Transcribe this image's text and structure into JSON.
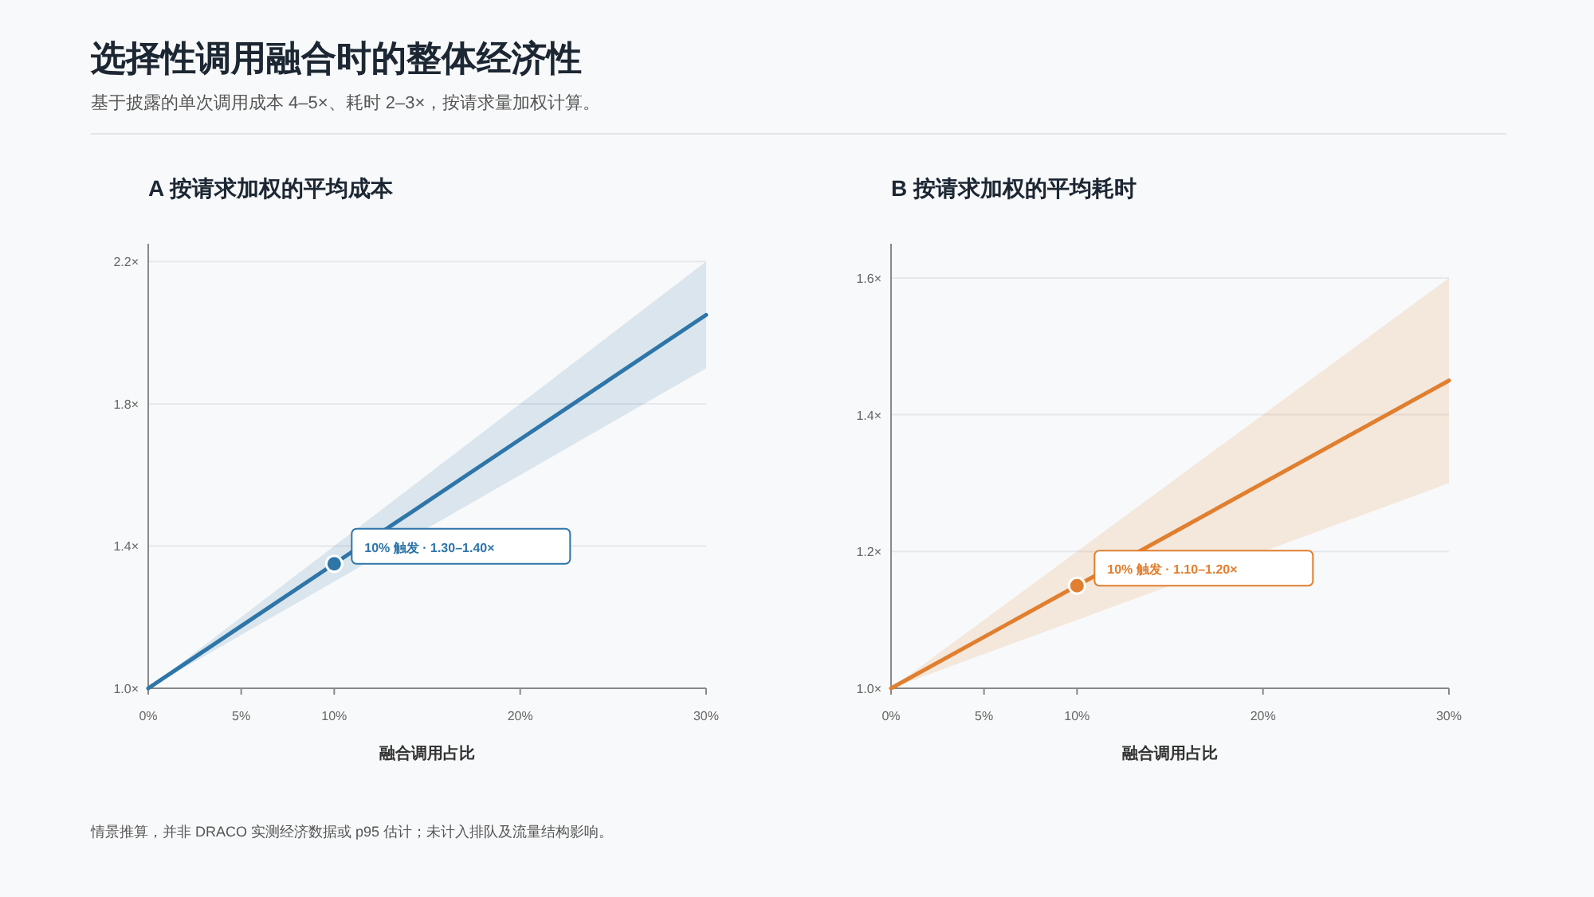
{
  "chart_data": [
    {
      "type": "other",
      "title": "选择性调用融合时的整体经济性",
      "subtitle": "基于披露的单次调用成本 4–5×、耗时 2–3×，按请求量加权计算。",
      "annotations": [
        "情景推算，并非 DRACO 实测经济数据或 p95 估计；未计入排队及流量结构影响。"
      ]
    },
    {
      "type": "line",
      "title": "A 按请求加权的平均成本",
      "xlabel": "融合调用占比",
      "x": [
        0,
        5,
        10,
        20,
        30
      ],
      "xlim": [
        0,
        30
      ],
      "xticks": [
        {
          "value": 0,
          "label": "0%"
        },
        {
          "value": 5,
          "label": "5%"
        },
        {
          "value": 10,
          "label": "10%"
        },
        {
          "value": 20,
          "label": "20%"
        },
        {
          "value": 30,
          "label": "30%"
        }
      ],
      "ylim": [
        1.0,
        2.25
      ],
      "yticks": [
        {
          "value": 1.0,
          "label": "1.0×"
        },
        {
          "value": 1.4,
          "label": "1.4×"
        },
        {
          "value": 1.8,
          "label": "1.8×"
        },
        {
          "value": 2.2,
          "label": "2.2×"
        }
      ],
      "grid": "y",
      "series": [
        {
          "type": "line",
          "color": "#2e75a8",
          "values": [
            1.0,
            1.175,
            1.35,
            1.7,
            2.05
          ],
          "lower": [
            1.0,
            1.15,
            1.3,
            1.6,
            1.9
          ],
          "upper": [
            1.0,
            1.2,
            1.4,
            1.8,
            2.2
          ]
        },
        {
          "type": "scatter",
          "color": "#2e75a8",
          "x": [
            10
          ],
          "values": [
            1.35
          ]
        }
      ],
      "annotations": [
        {
          "text": "10% 触发 · 1.30–1.40×",
          "x": 10,
          "y": 1.35
        }
      ]
    },
    {
      "type": "line",
      "title": "B 按请求加权的平均耗时",
      "xlabel": "融合调用占比",
      "xlim": [
        0,
        30
      ],
      "xticks": [
        {
          "value": 0,
          "label": "0%"
        },
        {
          "value": 5,
          "label": "5%"
        },
        {
          "value": 10,
          "label": "10%"
        },
        {
          "value": 20,
          "label": "20%"
        },
        {
          "value": 30,
          "label": "30%"
        }
      ],
      "ylim": [
        1.0,
        1.65
      ],
      "yticks": [
        {
          "value": 1.0,
          "label": "1.0×"
        },
        {
          "value": 1.2,
          "label": "1.2×"
        },
        {
          "value": 1.4,
          "label": "1.4×"
        },
        {
          "value": 1.6,
          "label": "1.6×"
        }
      ],
      "grid": "y",
      "series": [
        {
          "type": "line",
          "color": "#e07f2f",
          "x": [
            0,
            5,
            10,
            30
          ],
          "values": [
            1.0,
            1.075,
            1.15,
            1.45
          ],
          "lower": [
            1.0,
            1.05,
            1.1,
            1.3
          ],
          "upper": [
            1.0,
            1.1,
            1.2,
            1.6
          ]
        },
        {
          "type": "scatter",
          "color": "#e07f2f",
          "x": [
            10
          ],
          "values": [
            1.15
          ]
        }
      ],
      "annotations": [
        {
          "text": "10% 触发 · 1.10–1.20×",
          "x": 10,
          "y": 1.15
        }
      ]
    }
  ]
}
